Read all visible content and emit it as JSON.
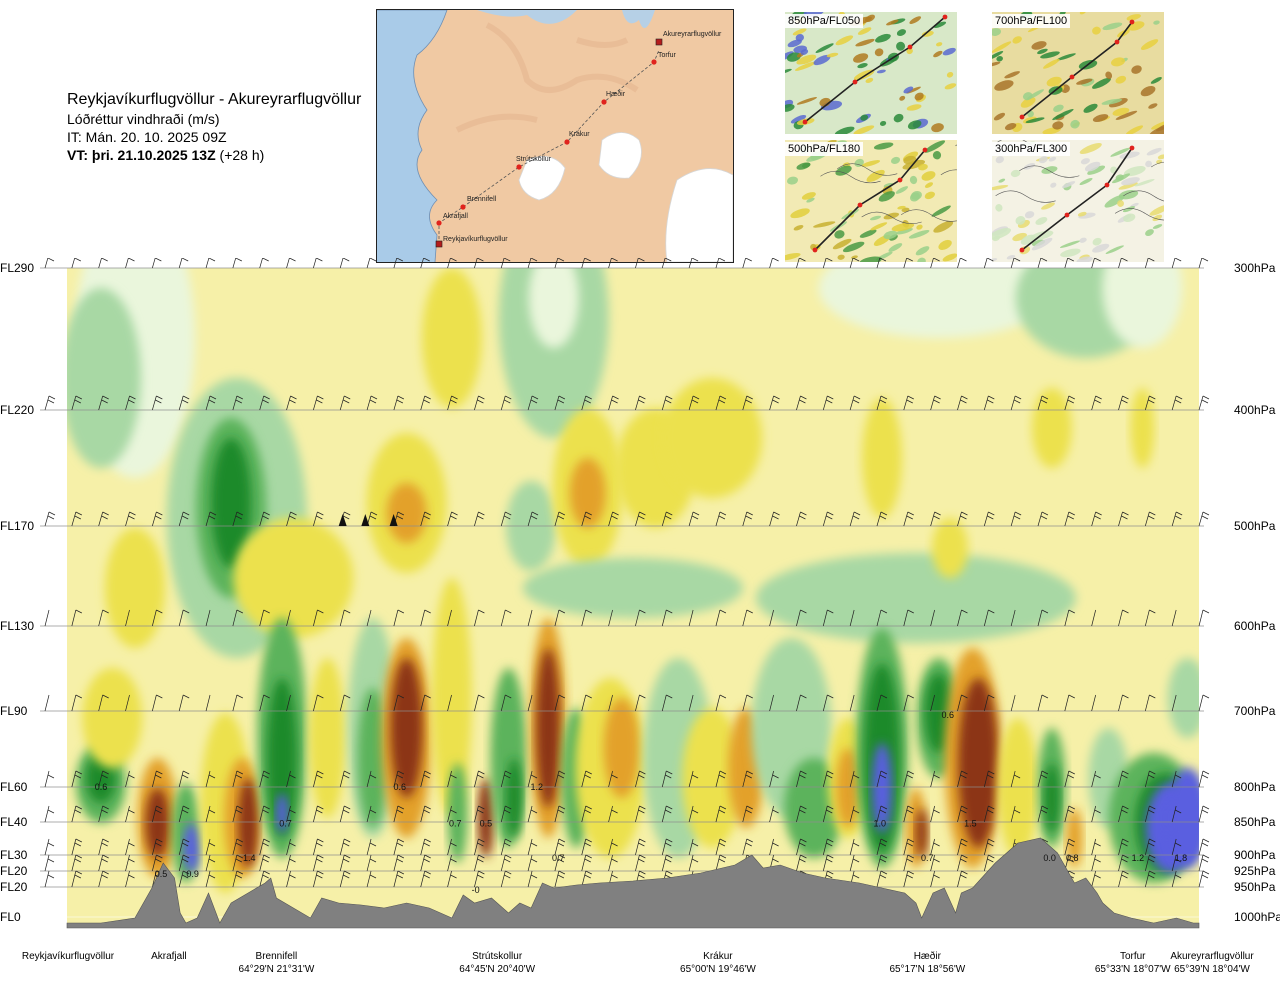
{
  "header": {
    "title": "Reykjavíkurflugvöllur - Akureyrarflugvöllur",
    "subtitle": "Lóðréttur vindhraði (m/s)",
    "it": "IT: Mán. 20. 10. 2025 09Z",
    "vt_bold": "VT: þri. 21.10.2025 13Z",
    "vt_extra": " (+28 h)"
  },
  "route_map": {
    "points": [
      {
        "name": "Akureyrarflugvöllur"
      },
      {
        "name": "Torfur"
      },
      {
        "name": "Hæðir"
      },
      {
        "name": "Krákur"
      },
      {
        "name": "Strútskollur"
      },
      {
        "name": "Brennifell"
      },
      {
        "name": "Akrafjall"
      },
      {
        "name": "Reykjavíkurflugvöllur"
      }
    ]
  },
  "thumbnails": [
    {
      "label": "850hPa/FL050"
    },
    {
      "label": "700hPa/FL100"
    },
    {
      "label": "500hPa/FL180"
    },
    {
      "label": "300hPa/FL300"
    }
  ],
  "chart_data": {
    "type": "heatmap",
    "title": "Reykjavíkurflugvöllur - Akureyrarflugvöllur",
    "quantity": "Lóðréttur vindhraði (m/s)",
    "levels": [
      {
        "fl": "FL290",
        "hpa": "300hPa"
      },
      {
        "fl": "FL220",
        "hpa": "400hPa"
      },
      {
        "fl": "FL170",
        "hpa": "500hPa"
      },
      {
        "fl": "FL130",
        "hpa": "600hPa"
      },
      {
        "fl": "FL90",
        "hpa": "700hPa"
      },
      {
        "fl": "FL60",
        "hpa": "800hPa"
      },
      {
        "fl": "FL40",
        "hpa": "850hPa"
      },
      {
        "fl": "FL30",
        "hpa": "900hPa"
      },
      {
        "fl": "FL20",
        "hpa": "925hPa"
      },
      {
        "fl": "FL20",
        "hpa": "950hPa"
      },
      {
        "fl": "FL0",
        "hpa": "1000hPa"
      }
    ],
    "pressure_range_hpa": [
      300,
      1000
    ],
    "route_fraction_range": [
      0,
      1
    ],
    "stations": [
      {
        "name": "Reykjavíkurflugvöllur",
        "coords": "",
        "route_fraction": 0.0
      },
      {
        "name": "Akrafjall",
        "coords": "",
        "route_fraction": 0.09
      },
      {
        "name": "Brennifell",
        "coords": "64°29'N 21°31'W",
        "route_fraction": 0.185
      },
      {
        "name": "Strútskollur",
        "coords": "64°45'N 20°40'W",
        "route_fraction": 0.38
      },
      {
        "name": "Krákur",
        "coords": "65°00'N 19°46'W",
        "route_fraction": 0.575
      },
      {
        "name": "Hæðir",
        "coords": "65°17'N 18°56'W",
        "route_fraction": 0.76
      },
      {
        "name": "Torfur",
        "coords": "65°33'N 18°07'W",
        "route_fraction": 0.945
      },
      {
        "name": "Akureyrarflugvöllur",
        "coords": "65°39'N 18°04'W",
        "route_fraction": 1.0
      }
    ],
    "value_labels": [
      {
        "text": "0.6",
        "route_fraction": 0.03,
        "hpa": 800
      },
      {
        "text": "0.5",
        "route_fraction": 0.083,
        "hpa": 930
      },
      {
        "text": "0.9",
        "route_fraction": 0.111,
        "hpa": 930
      },
      {
        "text": "1.4",
        "route_fraction": 0.161,
        "hpa": 905
      },
      {
        "text": "0.7",
        "route_fraction": 0.193,
        "hpa": 852
      },
      {
        "text": "0.6",
        "route_fraction": 0.294,
        "hpa": 800
      },
      {
        "text": "0.7",
        "route_fraction": 0.343,
        "hpa": 852
      },
      {
        "text": "0.5",
        "route_fraction": 0.37,
        "hpa": 852
      },
      {
        "text": "-0",
        "route_fraction": 0.361,
        "hpa": 955
      },
      {
        "text": "1.2",
        "route_fraction": 0.415,
        "hpa": 800
      },
      {
        "text": "0.7",
        "route_fraction": 0.434,
        "hpa": 905
      },
      {
        "text": "0.6",
        "route_fraction": 0.778,
        "hpa": 705
      },
      {
        "text": "1.0",
        "route_fraction": 0.718,
        "hpa": 852
      },
      {
        "text": "1.5",
        "route_fraction": 0.798,
        "hpa": 852
      },
      {
        "text": "0.7",
        "route_fraction": 0.76,
        "hpa": 905
      },
      {
        "text": "0.0",
        "route_fraction": 0.868,
        "hpa": 905
      },
      {
        "text": "0.8",
        "route_fraction": 0.888,
        "hpa": 905
      },
      {
        "text": "1.2",
        "route_fraction": 0.946,
        "hpa": 905
      },
      {
        "text": "1.8",
        "route_fraction": 0.984,
        "hpa": 905
      }
    ],
    "color_scale": {
      "strong_up_blue": "#5a5fe0",
      "up_dark_green": "#1d8a2c",
      "up_green": "#5cb35c",
      "weak_up_green": "#a8d8a4",
      "near_zero_pale": "#eaf6dc",
      "weak_down_cream": "#f6f0a8",
      "down_yellow": "#ece14e",
      "down_orange": "#e3a12a",
      "strong_down_brown": "#8c3413",
      "terrain": "#808080"
    },
    "grid": true
  }
}
